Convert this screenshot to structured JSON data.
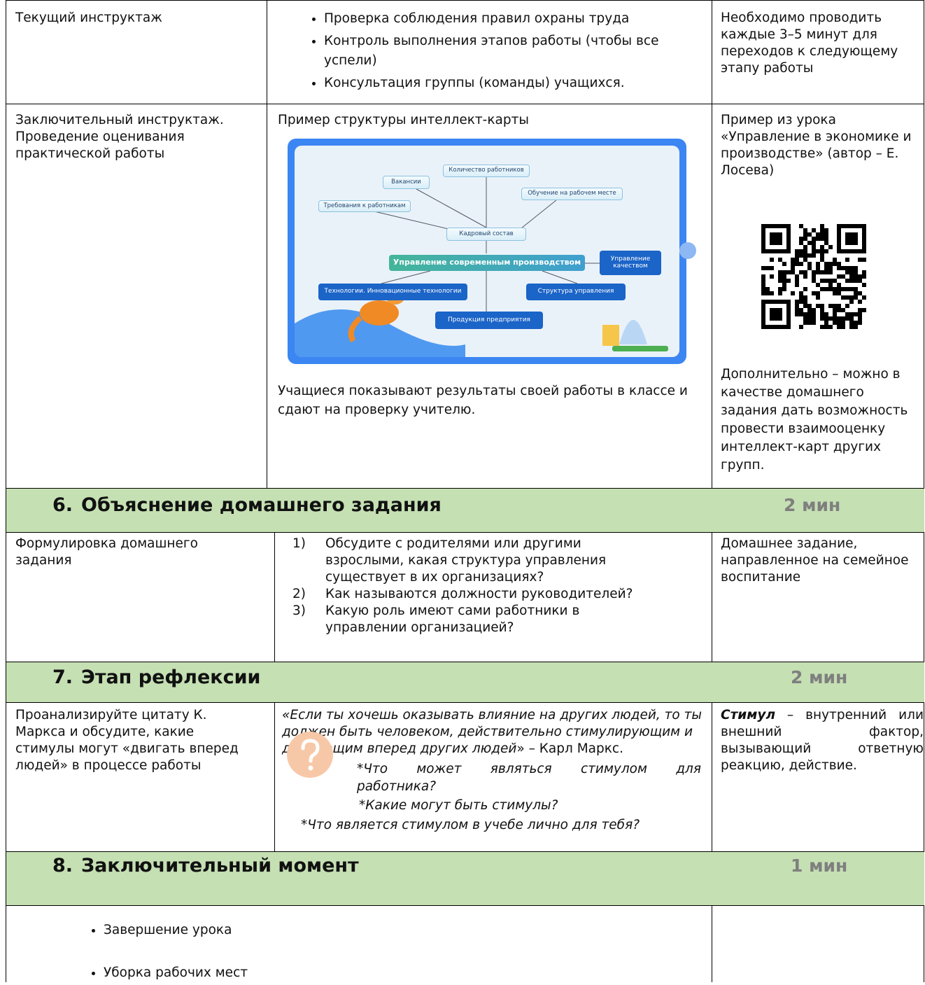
{
  "rows": [
    {
      "stage": "Текущий инструктаж",
      "bullets": [
        "Проверка соблюдения правил охраны труда",
        "Контроль выполнения этапов работы (чтобы все успели)",
        "Консультация группы (команды) учащихся."
      ],
      "note": "Необходимо проводить каждые 3–5 минут для переходов к следующему этапу работы"
    },
    {
      "stage": "Заключительный инструктаж. Проведение оценивания практической работы",
      "caption": "Пример структуры интеллект-карты",
      "mind_map": {
        "nodes": [
          "Количество работников",
          "Вакансии",
          "Обучение на рабочем месте",
          "Требования к работникам",
          "Кадровый состав",
          "Управление современным производством",
          "Управление качеством",
          "Технологии. Инновационные технологии",
          "Структура управления",
          "Продукция предприятия"
        ]
      },
      "result": "Учащиеся показывают результаты своей работы в классе и сдают на проверку учителю.",
      "note": "Пример из урока «Управление в экономике и производстве» (автор – Е. Лосева)",
      "note_extra": "Дополнительно – можно в качестве домашнего задания дать возможность провести взаимооценку интеллект-карт других групп."
    }
  ],
  "sections": [
    {
      "number": "6.",
      "title": "Объяснение домашнего задания",
      "duration": "2 мин",
      "stage": "Формулировка домашнего задания",
      "items": [
        {
          "num": "1)",
          "text": "Обсудите с родителями или другими взрослыми, какая структура управления существует в их организациях?"
        },
        {
          "num": "2)",
          "text": "Как называются должности руководителей?"
        },
        {
          "num": "3)",
          "text": "Какую роль имеют сами работники в управлении организацией?"
        }
      ],
      "note": "Домашнее задание, направленное на семейное воспитание"
    },
    {
      "number": "7.",
      "title": "Этап рефлексии",
      "duration": "2 мин",
      "stage": "Проанализируйте цитату К. Маркса и обсудите, какие стимулы могут «двигать вперед людей» в процессе работы",
      "quote": "«Если ты хочешь оказывать влияние на других людей, то ты должен быть человеком, действительно стимулирующим и двигающим вперед других людей",
      "quote_author": "» – Карл Маркс.",
      "questions": [
        "*Что может являться стимулом для работника?",
        "*Какие могут быть стимулы?",
        "*Что является стимулом в учебе лично для тебя?"
      ],
      "term": "Стимул",
      "definition": " – внутренний или внешний фактор, вызывающий ответную реакцию, действие."
    },
    {
      "number": "8.",
      "title": "Заключительный момент",
      "duration": "1 мин",
      "bullets": [
        "Завершение урока",
        "Уборка рабочих мест"
      ]
    }
  ]
}
